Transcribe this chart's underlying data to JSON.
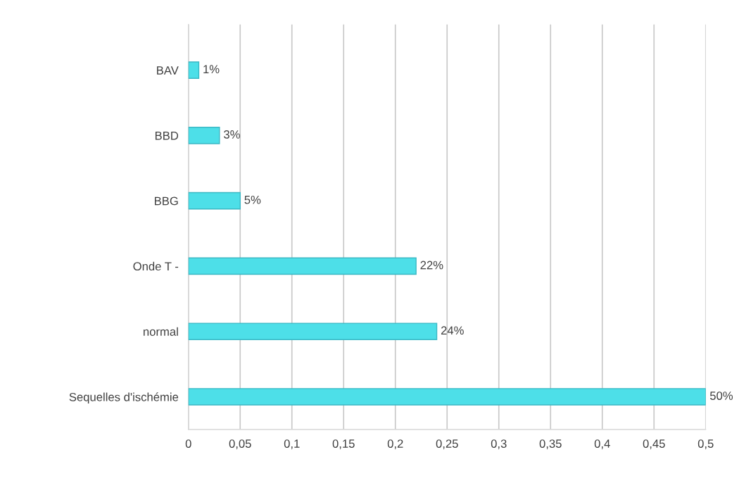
{
  "chart_data": {
    "type": "bar",
    "orientation": "horizontal",
    "categories": [
      "BAV",
      "BBD",
      "BBG",
      "Onde T -",
      "normal",
      "Sequelles d'ischémie"
    ],
    "values": [
      0.01,
      0.03,
      0.05,
      0.22,
      0.24,
      0.5
    ],
    "value_labels": [
      "1%",
      "3%",
      "5%",
      "22%",
      "24%",
      "50%"
    ],
    "color": "#4ddfe8",
    "xlim": [
      0,
      0.5
    ],
    "xticks": [
      0,
      {
        "value": 0.05,
        "label": "0,05"
      },
      {
        "value": 0.1,
        "label": "0,1"
      },
      {
        "value": 0.15,
        "label": "0,15"
      },
      {
        "value": 0.2,
        "label": "0,2"
      },
      {
        "value": 0.25,
        "label": "0,25"
      },
      {
        "value": 0.3,
        "label": "0,3"
      },
      {
        "value": 0.35,
        "label": "0,35"
      },
      {
        "value": 0.4,
        "label": "0,4"
      },
      {
        "value": 0.45,
        "label": "0,45"
      },
      {
        "value": 0.5,
        "label": "0,5"
      }
    ],
    "grid": "x"
  }
}
